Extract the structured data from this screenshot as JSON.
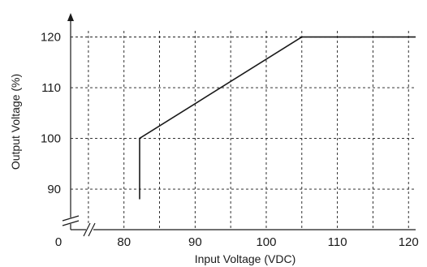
{
  "chart_data": {
    "type": "line",
    "xlabel": "Input Voltage (VDC)",
    "ylabel": "Output Voltage (%)",
    "x_ticks": [
      80,
      90,
      100,
      110,
      120
    ],
    "y_ticks": [
      90,
      100,
      110,
      120
    ],
    "origin_label": "0",
    "xlim": [
      72.5,
      121
    ],
    "ylim": [
      86,
      122.5
    ],
    "x_breaks": true,
    "y_breaks": true,
    "grid": "dashed",
    "series": [
      {
        "points": [
          [
            82.2,
            88
          ],
          [
            82.2,
            100
          ],
          [
            105,
            120
          ],
          [
            121,
            120
          ]
        ]
      }
    ],
    "colors": {
      "line": "#1a1a1a",
      "grid": "#1a1a1a"
    }
  }
}
